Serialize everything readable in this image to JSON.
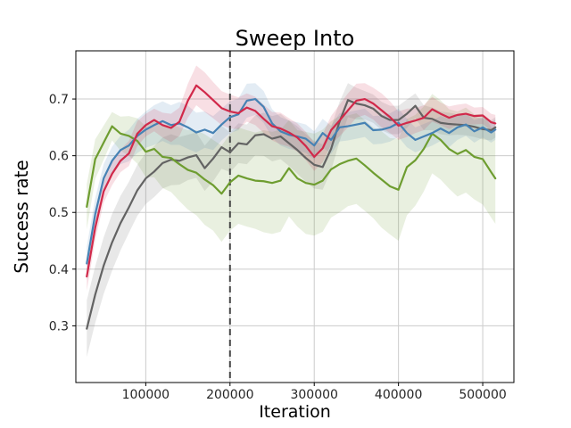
{
  "figure": {
    "background": "#ffffff"
  },
  "chart_data": {
    "type": "line",
    "title": "Sweep Into",
    "xlabel": "Iteration",
    "ylabel": "Success rate",
    "xlim": [
      17000,
      537000
    ],
    "ylim": [
      0.2,
      0.785
    ],
    "grid": true,
    "grid_color": "#cccccc",
    "spine_color": "#000000",
    "tick_label_color": "#262626",
    "band_opacity": 0.15,
    "line_width": 2.2,
    "legend": null,
    "xticks": {
      "values": [
        100000,
        200000,
        300000,
        400000,
        500000
      ],
      "labels": [
        "100000",
        "200000",
        "300000",
        "400000",
        "500000"
      ]
    },
    "yticks": {
      "values": [
        0.3,
        0.4,
        0.5,
        0.6,
        0.7
      ],
      "labels": [
        "0.3",
        "0.4",
        "0.5",
        "0.6",
        "0.7"
      ]
    },
    "vline": {
      "x": 200000,
      "style": "dashed",
      "color": "#474747",
      "width": 2
    },
    "x": [
      30000,
      40000,
      50000,
      60000,
      70000,
      80000,
      90000,
      100000,
      110000,
      120000,
      130000,
      140000,
      150000,
      160000,
      170000,
      180000,
      190000,
      200000,
      210000,
      220000,
      230000,
      240000,
      250000,
      260000,
      270000,
      280000,
      290000,
      300000,
      310000,
      320000,
      330000,
      340000,
      350000,
      360000,
      370000,
      380000,
      390000,
      400000,
      410000,
      420000,
      430000,
      440000,
      450000,
      460000,
      470000,
      480000,
      490000,
      500000,
      510000,
      515000
    ],
    "series": [
      {
        "name": "gray",
        "color": "#636363",
        "values": [
          0.295,
          0.355,
          0.406,
          0.447,
          0.481,
          0.509,
          0.539,
          0.56,
          0.572,
          0.587,
          0.593,
          0.591,
          0.597,
          0.601,
          0.578,
          0.595,
          0.615,
          0.606,
          0.622,
          0.62,
          0.636,
          0.638,
          0.63,
          0.634,
          0.622,
          0.61,
          0.596,
          0.584,
          0.58,
          0.612,
          0.66,
          0.698,
          0.692,
          0.689,
          0.683,
          0.67,
          0.663,
          0.663,
          0.674,
          0.688,
          0.667,
          0.665,
          0.658,
          0.656,
          0.655,
          0.654,
          0.651,
          0.647,
          0.645,
          0.65
        ],
        "band_halfwidth": [
          0.05,
          0.05,
          0.05,
          0.05,
          0.048,
          0.045,
          0.045,
          0.045,
          0.045,
          0.045,
          0.045,
          0.042,
          0.04,
          0.04,
          0.04,
          0.04,
          0.038,
          0.035,
          0.035,
          0.035,
          0.035,
          0.038,
          0.04,
          0.04,
          0.04,
          0.042,
          0.042,
          0.042,
          0.04,
          0.038,
          0.035,
          0.03,
          0.028,
          0.025,
          0.025,
          0.025,
          0.025,
          0.025,
          0.025,
          0.022,
          0.022,
          0.02,
          0.02,
          0.02,
          0.018,
          0.018,
          0.018,
          0.018,
          0.018,
          0.018
        ]
      },
      {
        "name": "green",
        "color": "#6e9d30",
        "values": [
          0.51,
          0.594,
          0.623,
          0.652,
          0.639,
          0.635,
          0.626,
          0.607,
          0.612,
          0.598,
          0.596,
          0.585,
          0.575,
          0.57,
          0.558,
          0.548,
          0.533,
          0.553,
          0.565,
          0.56,
          0.556,
          0.555,
          0.552,
          0.556,
          0.578,
          0.56,
          0.552,
          0.549,
          0.556,
          0.576,
          0.585,
          0.591,
          0.595,
          0.583,
          0.57,
          0.558,
          0.546,
          0.54,
          0.58,
          0.592,
          0.612,
          0.639,
          0.628,
          0.612,
          0.603,
          0.61,
          0.598,
          0.594,
          0.571,
          0.56
        ],
        "band_halfwidth": [
          0.04,
          0.035,
          0.03,
          0.025,
          0.03,
          0.035,
          0.04,
          0.045,
          0.05,
          0.055,
          0.06,
          0.065,
          0.07,
          0.075,
          0.08,
          0.08,
          0.085,
          0.085,
          0.085,
          0.085,
          0.085,
          0.09,
          0.09,
          0.09,
          0.085,
          0.085,
          0.09,
          0.09,
          0.09,
          0.085,
          0.085,
          0.08,
          0.08,
          0.08,
          0.08,
          0.085,
          0.085,
          0.09,
          0.085,
          0.08,
          0.075,
          0.07,
          0.07,
          0.07,
          0.075,
          0.075,
          0.075,
          0.08,
          0.08,
          0.08
        ]
      },
      {
        "name": "blue",
        "color": "#4682b4",
        "values": [
          0.41,
          0.497,
          0.56,
          0.591,
          0.61,
          0.618,
          0.635,
          0.646,
          0.654,
          0.661,
          0.654,
          0.657,
          0.65,
          0.641,
          0.646,
          0.64,
          0.655,
          0.668,
          0.673,
          0.697,
          0.7,
          0.686,
          0.657,
          0.643,
          0.637,
          0.634,
          0.63,
          0.618,
          0.64,
          0.628,
          0.65,
          0.652,
          0.655,
          0.658,
          0.645,
          0.646,
          0.65,
          0.658,
          0.64,
          0.628,
          0.634,
          0.64,
          0.648,
          0.64,
          0.65,
          0.655,
          0.643,
          0.65,
          0.641,
          0.646
        ],
        "band_halfwidth": [
          0.03,
          0.028,
          0.025,
          0.025,
          0.025,
          0.028,
          0.03,
          0.032,
          0.035,
          0.035,
          0.035,
          0.038,
          0.038,
          0.035,
          0.032,
          0.03,
          0.028,
          0.028,
          0.028,
          0.03,
          0.028,
          0.028,
          0.025,
          0.025,
          0.025,
          0.025,
          0.025,
          0.025,
          0.025,
          0.025,
          0.025,
          0.025,
          0.025,
          0.025,
          0.025,
          0.025,
          0.025,
          0.025,
          0.025,
          0.022,
          0.022,
          0.022,
          0.022,
          0.025,
          0.022,
          0.02,
          0.02,
          0.018,
          0.018,
          0.018
        ]
      },
      {
        "name": "red",
        "color": "#d1294a",
        "values": [
          0.387,
          0.473,
          0.537,
          0.568,
          0.591,
          0.604,
          0.639,
          0.654,
          0.663,
          0.654,
          0.649,
          0.66,
          0.697,
          0.724,
          0.712,
          0.698,
          0.684,
          0.678,
          0.675,
          0.685,
          0.679,
          0.665,
          0.652,
          0.648,
          0.641,
          0.632,
          0.617,
          0.598,
          0.613,
          0.645,
          0.662,
          0.68,
          0.697,
          0.7,
          0.692,
          0.68,
          0.668,
          0.653,
          0.658,
          0.662,
          0.667,
          0.682,
          0.674,
          0.667,
          0.672,
          0.674,
          0.67,
          0.671,
          0.659,
          0.657
        ],
        "band_halfwidth": [
          0.025,
          0.022,
          0.02,
          0.02,
          0.02,
          0.022,
          0.022,
          0.02,
          0.02,
          0.022,
          0.025,
          0.025,
          0.03,
          0.035,
          0.035,
          0.032,
          0.03,
          0.03,
          0.028,
          0.025,
          0.025,
          0.025,
          0.025,
          0.028,
          0.025,
          0.025,
          0.025,
          0.025,
          0.025,
          0.025,
          0.028,
          0.03,
          0.03,
          0.028,
          0.028,
          0.03,
          0.028,
          0.025,
          0.025,
          0.022,
          0.022,
          0.022,
          0.02,
          0.02,
          0.018,
          0.018,
          0.015,
          0.015,
          0.015,
          0.015
        ]
      }
    ]
  }
}
